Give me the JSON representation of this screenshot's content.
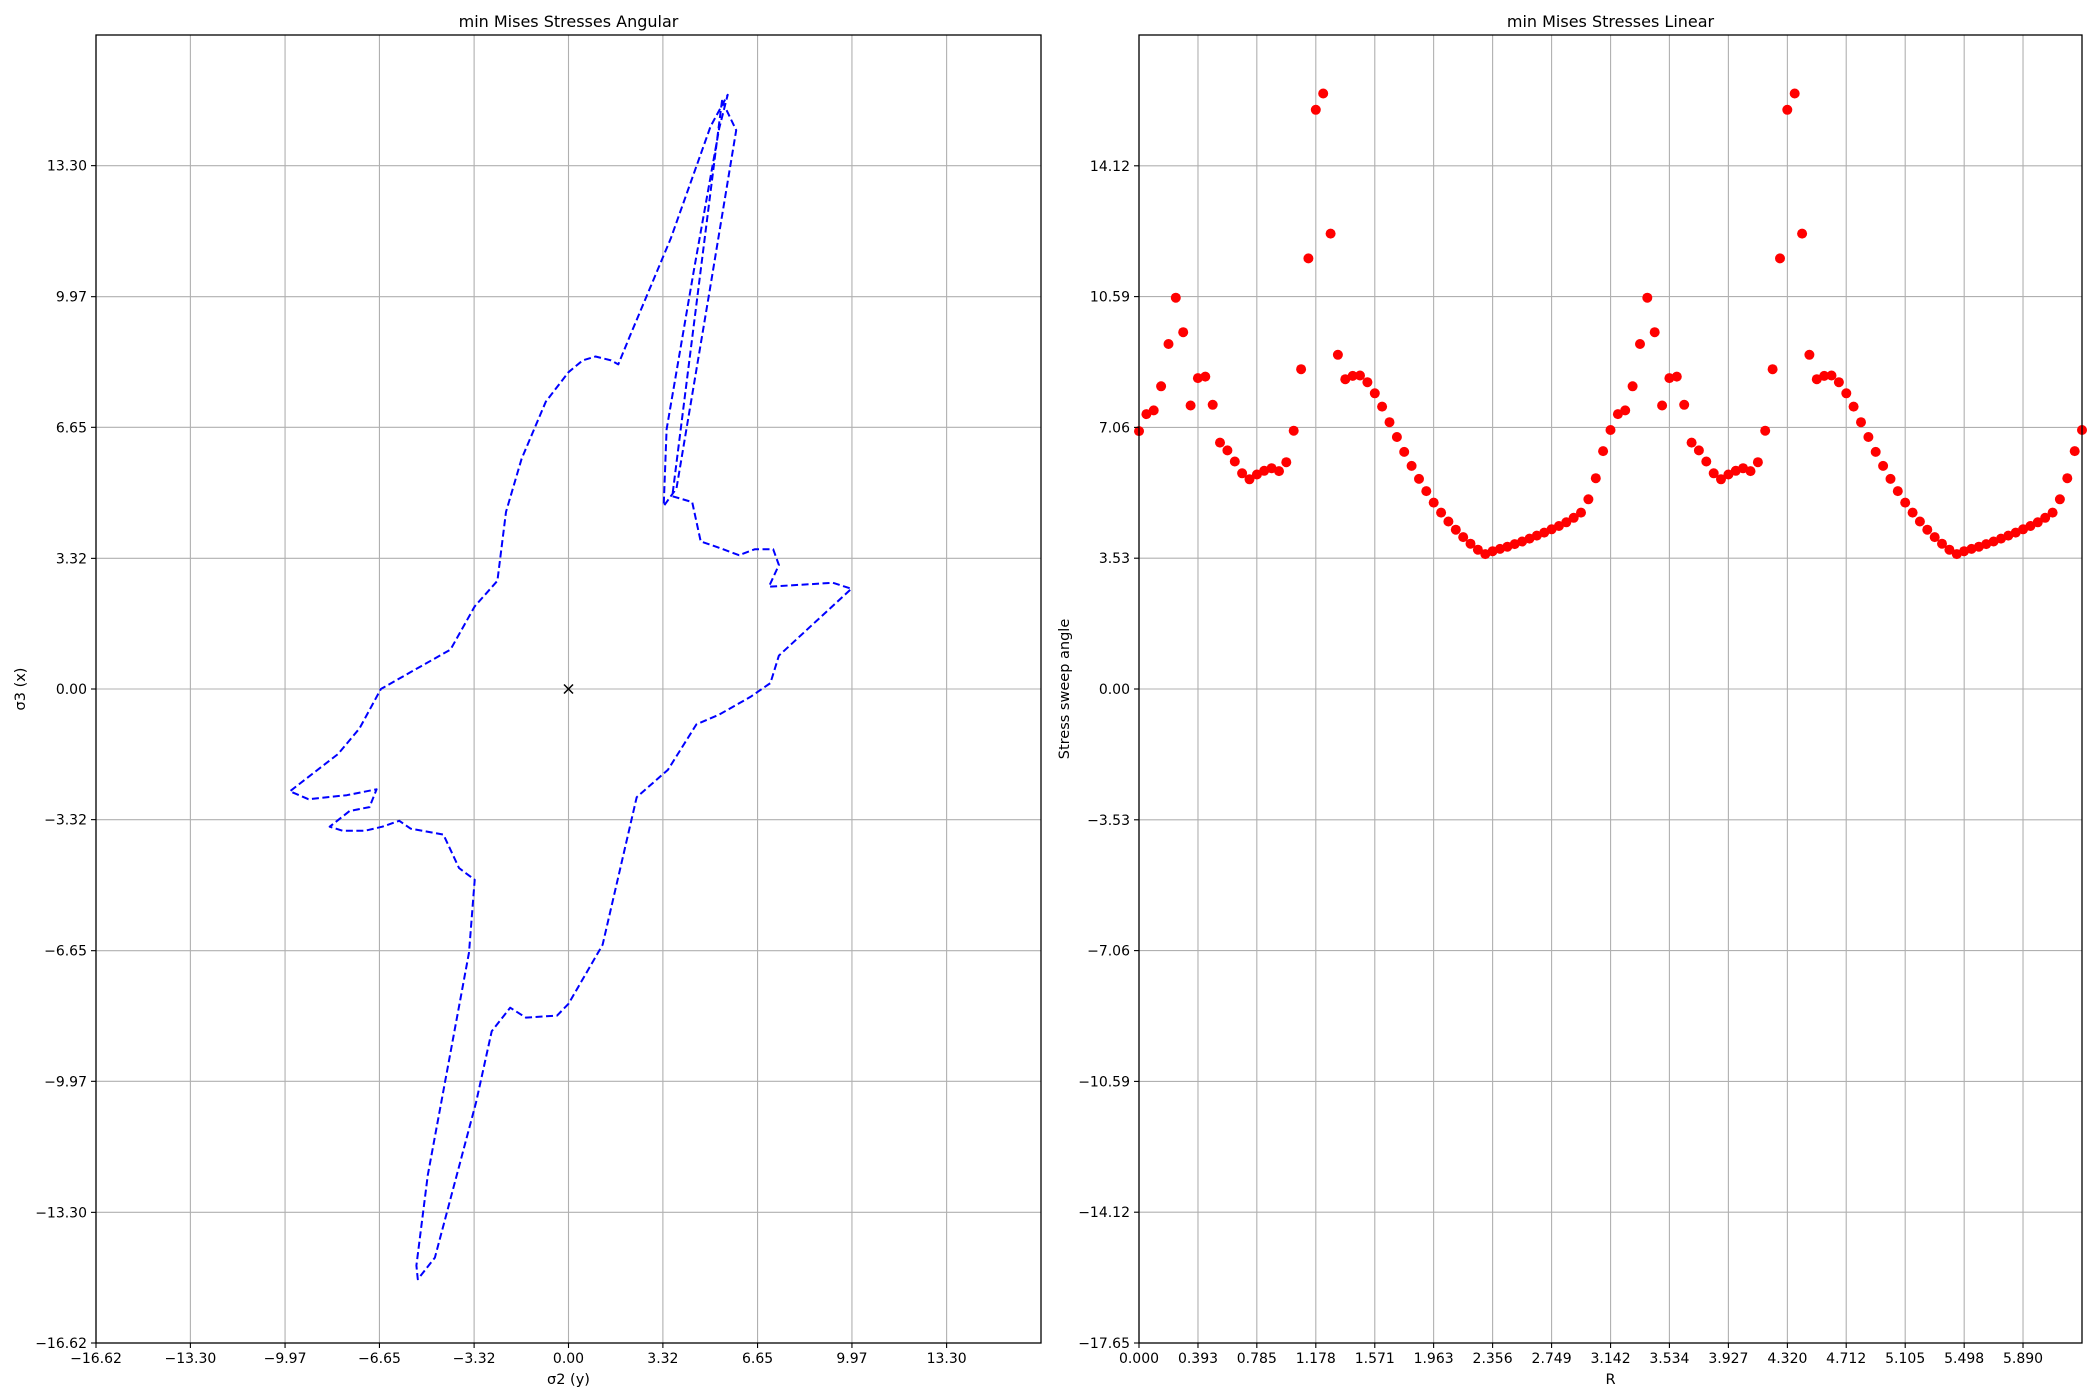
{
  "chart_data": [
    {
      "type": "line",
      "title": "min Mises Stresses Angular",
      "xlabel": "σ2 (y)",
      "ylabel": "σ3 (x)",
      "xlim": [
        -16.62,
        16.62
      ],
      "ylim": [
        -16.62,
        16.62
      ],
      "xticks": [
        "−16.62",
        "−13.30",
        "−9.97",
        "−6.65",
        "−3.32",
        "0.00",
        "3.32",
        "6.65",
        "9.97",
        "13.30"
      ],
      "xtick_values": [
        -16.62,
        -13.3,
        -9.97,
        -6.65,
        -3.32,
        0.0,
        3.32,
        6.65,
        9.97,
        13.3
      ],
      "yticks": [
        "−16.62",
        "−13.30",
        "−9.97",
        "−6.65",
        "−3.32",
        "0.00",
        "3.32",
        "6.65",
        "9.97",
        "13.30"
      ],
      "ytick_values": [
        -16.62,
        -13.3,
        -9.97,
        -6.65,
        -3.32,
        0.0,
        3.32,
        6.65,
        9.97,
        13.3
      ],
      "grid": true,
      "series": [
        {
          "style": "dashed",
          "color": "#0000ff",
          "closed": true,
          "points": [
            [
              5.4,
              14.95
            ],
            [
              5.9,
              14.2
            ],
            [
              4.95,
              10.05
            ],
            [
              3.8,
              5.1
            ],
            [
              3.45,
              4.75
            ],
            [
              3.35,
              4.65
            ],
            [
              3.45,
              6.6
            ],
            [
              4.4,
              10.6
            ],
            [
              5.3,
              14.25
            ],
            [
              5.6,
              15.1
            ],
            [
              5.0,
              14.3
            ],
            [
              3.6,
              11.45
            ],
            [
              2.15,
              8.95
            ],
            [
              1.75,
              8.25
            ],
            [
              1.5,
              8.35
            ],
            [
              0.95,
              8.45
            ],
            [
              0.5,
              8.35
            ],
            [
              0.0,
              8.05
            ],
            [
              -0.8,
              7.3
            ],
            [
              -1.65,
              5.85
            ],
            [
              -2.2,
              4.5
            ],
            [
              -2.5,
              2.75
            ],
            [
              -3.3,
              2.1
            ],
            [
              -4.15,
              1.0
            ],
            [
              -5.5,
              0.45
            ],
            [
              -6.6,
              0.0
            ],
            [
              -7.35,
              -1.0
            ],
            [
              -8.1,
              -1.65
            ],
            [
              -9.8,
              -2.6
            ],
            [
              -9.15,
              -2.8
            ],
            [
              -7.8,
              -2.7
            ],
            [
              -6.75,
              -2.55
            ],
            [
              -7.0,
              -3.0
            ],
            [
              -7.7,
              -3.1
            ],
            [
              -8.4,
              -3.5
            ],
            [
              -7.95,
              -3.6
            ],
            [
              -7.15,
              -3.6
            ],
            [
              -6.55,
              -3.5
            ],
            [
              -5.95,
              -3.35
            ],
            [
              -5.55,
              -3.55
            ],
            [
              -4.4,
              -3.7
            ],
            [
              -3.85,
              -4.55
            ],
            [
              -3.3,
              -4.85
            ],
            [
              -3.5,
              -6.7
            ],
            [
              -4.95,
              -12.35
            ],
            [
              -5.35,
              -14.65
            ],
            [
              -5.3,
              -15.0
            ],
            [
              -4.7,
              -14.45
            ],
            [
              -3.25,
              -10.5
            ],
            [
              -2.7,
              -8.7
            ],
            [
              -2.05,
              -8.1
            ],
            [
              -1.5,
              -8.35
            ],
            [
              -0.4,
              -8.3
            ],
            [
              0.0,
              -8.0
            ],
            [
              1.2,
              -6.5
            ],
            [
              2.4,
              -2.75
            ],
            [
              3.5,
              -2.05
            ],
            [
              4.5,
              -0.9
            ],
            [
              5.3,
              -0.65
            ],
            [
              6.4,
              -0.2
            ],
            [
              7.1,
              0.15
            ],
            [
              7.4,
              0.85
            ],
            [
              9.95,
              2.55
            ],
            [
              9.3,
              2.7
            ],
            [
              7.05,
              2.6
            ],
            [
              7.4,
              3.15
            ],
            [
              7.2,
              3.55
            ],
            [
              6.55,
              3.55
            ],
            [
              6.0,
              3.4
            ],
            [
              5.25,
              3.6
            ],
            [
              4.65,
              3.75
            ],
            [
              4.35,
              4.75
            ],
            [
              3.65,
              4.9
            ]
          ]
        },
        {
          "style": "marker-x",
          "color": "#000000",
          "points": [
            [
              0,
              0
            ]
          ]
        }
      ]
    },
    {
      "type": "scatter",
      "title": "min Mises Stresses Linear",
      "xlabel": "R",
      "ylabel": "Stress sweep angle",
      "xlim": [
        0,
        6.283
      ],
      "ylim": [
        -17.65,
        17.65
      ],
      "xticks": [
        "0.000",
        "0.393",
        "0.785",
        "1.178",
        "1.571",
        "1.963",
        "2.356",
        "2.749",
        "3.142",
        "3.534",
        "3.927",
        "4.320",
        "4.712",
        "5.105",
        "5.498",
        "5.890"
      ],
      "xtick_values": [
        0,
        0.393,
        0.785,
        1.178,
        1.571,
        1.963,
        2.356,
        2.749,
        3.142,
        3.534,
        3.927,
        4.32,
        4.712,
        5.105,
        5.498,
        5.89
      ],
      "yticks": [
        "−17.65",
        "−14.12",
        "−10.59",
        "−7.06",
        "−3.53",
        "0.00",
        "3.53",
        "7.06",
        "10.59",
        "14.12"
      ],
      "ytick_values": [
        -17.65,
        -14.12,
        -10.59,
        -7.06,
        -3.53,
        0.0,
        3.53,
        7.06,
        10.59,
        14.12
      ],
      "grid": true,
      "series": [
        {
          "color": "#ff0000",
          "marker": "circle",
          "x_step": 0.049087,
          "values": [
            6.96,
            7.42,
            7.52,
            8.17,
            9.31,
            10.56,
            9.63,
            7.65,
            8.39,
            8.43,
            7.67,
            6.65,
            6.44,
            6.14,
            5.82,
            5.66,
            5.79,
            5.89,
            5.96,
            5.88,
            6.12,
            6.97,
            8.63,
            11.62,
            15.63,
            16.07,
            12.29,
            9.02,
            8.36,
            8.45,
            8.46,
            8.28,
            7.98,
            7.62,
            7.2,
            6.8,
            6.4,
            6.02,
            5.67,
            5.34,
            5.03,
            4.76,
            4.52,
            4.3,
            4.1,
            3.92,
            3.76,
            3.64,
            3.72,
            3.78,
            3.84,
            3.91,
            3.98,
            4.06,
            4.14,
            4.22,
            4.31,
            4.4,
            4.5,
            4.62,
            4.76,
            5.12,
            5.69,
            6.42,
            6.99,
            7.42,
            7.52,
            8.17,
            9.31,
            10.56,
            9.63,
            7.65,
            8.39,
            8.43,
            7.67,
            6.65,
            6.44,
            6.14,
            5.82,
            5.66,
            5.79,
            5.89,
            5.96,
            5.88,
            6.12,
            6.97,
            8.63,
            11.62,
            15.63,
            16.07,
            12.29,
            9.02,
            8.36,
            8.45,
            8.46,
            8.28,
            7.98,
            7.62,
            7.2,
            6.8,
            6.4,
            6.02,
            5.67,
            5.34,
            5.03,
            4.76,
            4.52,
            4.3,
            4.1,
            3.92,
            3.76,
            3.64,
            3.72,
            3.78,
            3.84,
            3.91,
            3.98,
            4.06,
            4.14,
            4.22,
            4.31,
            4.4,
            4.5,
            4.62,
            4.76,
            5.12,
            5.69,
            6.42,
            6.99
          ]
        }
      ]
    }
  ]
}
